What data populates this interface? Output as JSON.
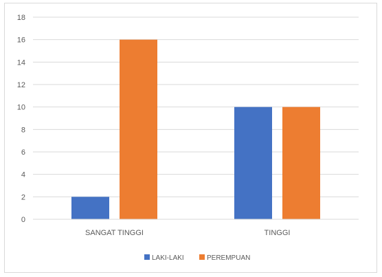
{
  "chart_data": {
    "type": "bar",
    "title": "",
    "xlabel": "",
    "ylabel": "",
    "categories": [
      "SANGAT TINGGI",
      "TINGGI"
    ],
    "series": [
      {
        "name": "LAKI-LAKI",
        "values": [
          2,
          10
        ],
        "color": "#4472c4"
      },
      {
        "name": "PEREMPUAN",
        "values": [
          16,
          10
        ],
        "color": "#ed7d31"
      }
    ],
    "ylim": [
      0,
      18
    ],
    "yticks": [
      0,
      2,
      4,
      6,
      8,
      10,
      12,
      14,
      16,
      18
    ],
    "grid": true,
    "legend_position": "bottom"
  }
}
